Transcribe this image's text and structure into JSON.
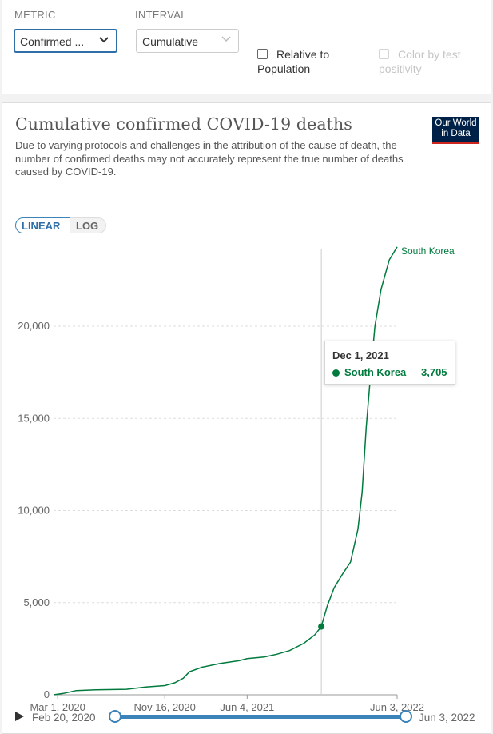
{
  "controls": {
    "metric_label": "METRIC",
    "metric_value": "Confirmed ...",
    "interval_label": "INTERVAL",
    "interval_value": "Cumulative",
    "relative_line1": "Relative to",
    "relative_line2": "Population",
    "color_line1": "Color by test",
    "color_line2": "positivity"
  },
  "header": {
    "title": "Cumulative confirmed COVID-19 deaths",
    "subtitle_lines": [
      "Due to varying protocols and challenges in the attribution of the cause of death, the",
      "number of confirmed deaths may not accurately represent the true number of deaths",
      "caused by COVID-19."
    ],
    "logo_line1": "Our World",
    "logo_line2": "in Data"
  },
  "scale": {
    "linear": "LINEAR",
    "log": "LOG",
    "selected": "LINEAR"
  },
  "chart_data": {
    "type": "line",
    "title": "Cumulative confirmed COVID-19 deaths",
    "xlabel": "",
    "ylabel": "",
    "ylim": [
      0,
      24500
    ],
    "y_ticks": [
      0,
      5000,
      10000,
      15000,
      20000
    ],
    "y_tick_labels": [
      "0",
      "5,000",
      "10,000",
      "15,000",
      "20,000"
    ],
    "x_ticks": [
      {
        "date": "2020-03-01",
        "label": "Mar 1, 2020"
      },
      {
        "date": "2020-11-16",
        "label": "Nov 16, 2020"
      },
      {
        "date": "2021-06-04",
        "label": "Jun 4, 2021"
      },
      {
        "date": "2022-06-03",
        "label": "Jun 3, 2022"
      }
    ],
    "x_range": [
      "2020-02-20",
      "2022-06-03"
    ],
    "series": [
      {
        "name": "South Korea",
        "color": "#007a3d",
        "points": [
          [
            "2020-02-20",
            0
          ],
          [
            "2020-03-15",
            75
          ],
          [
            "2020-04-15",
            230
          ],
          [
            "2020-06-01",
            270
          ],
          [
            "2020-08-15",
            300
          ],
          [
            "2020-10-01",
            420
          ],
          [
            "2020-11-16",
            500
          ],
          [
            "2020-12-10",
            650
          ],
          [
            "2020-12-31",
            900
          ],
          [
            "2021-01-15",
            1250
          ],
          [
            "2021-02-15",
            1500
          ],
          [
            "2021-03-31",
            1700
          ],
          [
            "2021-05-15",
            1850
          ],
          [
            "2021-06-04",
            1960
          ],
          [
            "2021-07-15",
            2050
          ],
          [
            "2021-08-15",
            2200
          ],
          [
            "2021-09-15",
            2400
          ],
          [
            "2021-10-20",
            2800
          ],
          [
            "2021-11-15",
            3250
          ],
          [
            "2021-12-01",
            3705
          ],
          [
            "2021-12-15",
            4800
          ],
          [
            "2022-01-01",
            5800
          ],
          [
            "2022-01-20",
            6500
          ],
          [
            "2022-02-10",
            7200
          ],
          [
            "2022-02-28",
            9000
          ],
          [
            "2022-03-10",
            11000
          ],
          [
            "2022-03-20",
            14500
          ],
          [
            "2022-03-31",
            17500
          ],
          [
            "2022-04-10",
            20000
          ],
          [
            "2022-04-25",
            22000
          ],
          [
            "2022-05-15",
            23600
          ],
          [
            "2022-06-03",
            24300
          ]
        ]
      }
    ],
    "highlight": {
      "date": "2021-12-01",
      "label": "Dec 1, 2021",
      "series": "South Korea",
      "value": 3705,
      "value_label": "3,705"
    }
  },
  "timeline": {
    "start_label": "Feb 20, 2020",
    "end_label": "Jun 3, 2022"
  }
}
